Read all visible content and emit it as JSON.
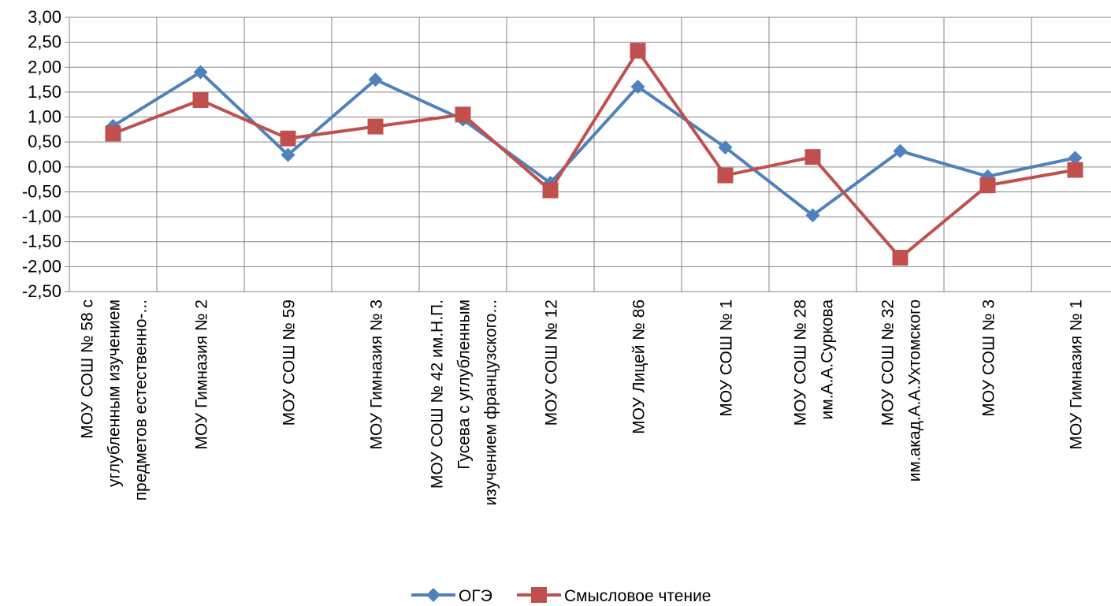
{
  "chart_data": {
    "type": "line",
    "categories": [
      [
        "МОУ СОШ № 58 с",
        "углубленным изучением",
        "предметов естественно-..."
      ],
      [
        "МОУ Гимназия № 2"
      ],
      [
        "МОУ СОШ № 59"
      ],
      [
        "МОУ Гимназия № 3"
      ],
      [
        "МОУ СОШ № 42  им.Н.П.",
        "Гусева с углубленным",
        "изучением французского..."
      ],
      [
        "МОУ СОШ № 12"
      ],
      [
        "МОУ Лицей № 86"
      ],
      [
        "МОУ СОШ № 1"
      ],
      [
        "МОУ СОШ № 28",
        "им.А.А.Суркова"
      ],
      [
        "МОУ СОШ № 32",
        "им.акад.А.А.Ухтомского"
      ],
      [
        "МОУ СОШ № 3"
      ],
      [
        "МОУ Гимназия № 1"
      ]
    ],
    "series": [
      {
        "name": "ОГЭ",
        "color": "#4F81BD",
        "marker": "diamond",
        "values": [
          0.82,
          1.9,
          0.24,
          1.75,
          0.95,
          -0.32,
          1.61,
          0.39,
          -0.97,
          0.32,
          -0.19,
          0.18
        ]
      },
      {
        "name": "Смысловое чтение",
        "color": "#C0504D",
        "marker": "square",
        "values": [
          0.67,
          1.34,
          0.57,
          0.81,
          1.05,
          -0.47,
          2.33,
          -0.17,
          0.2,
          -1.82,
          -0.37,
          -0.06
        ]
      }
    ],
    "yticks": [
      "3,00",
      "2,50",
      "2,00",
      "1,50",
      "1,00",
      "0,50",
      "0,00",
      "-0,50",
      "-1,00",
      "-1,50",
      "-2,00",
      "-2,50"
    ],
    "ylim": [
      -2.5,
      3.0
    ],
    "grid": true,
    "legend_position": "bottom",
    "title": "",
    "xlabel": "",
    "ylabel": ""
  }
}
